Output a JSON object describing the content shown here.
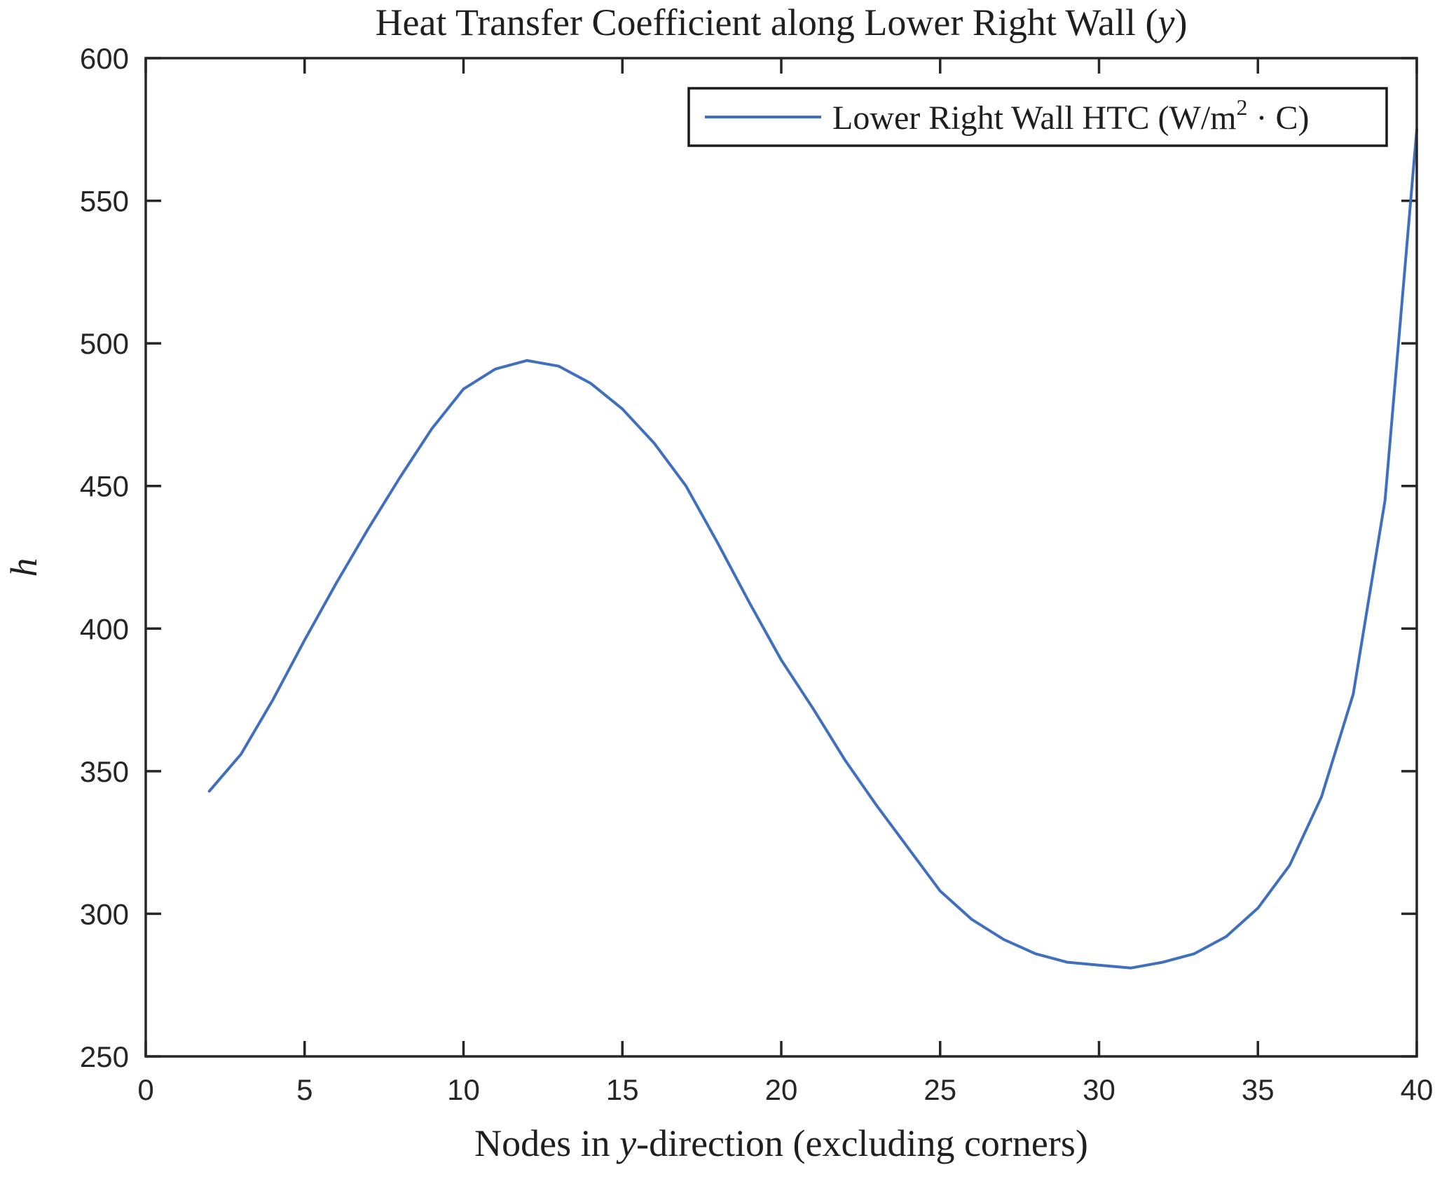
{
  "figure": {
    "title_prefix": "Heat Transfer Coefficient along Lower Right Wall (",
    "title_italic": "y",
    "title_suffix": ")",
    "ylabel": "h",
    "xlabel_prefix": "Nodes in ",
    "xlabel_italic": "y",
    "xlabel_suffix": "-direction (excluding corners)",
    "legend": {
      "label_prefix": "Lower Right Wall HTC (W/m",
      "label_sup": "2",
      "label_suffix": " · C)"
    }
  },
  "chart_data": {
    "type": "line",
    "title": "Heat Transfer Coefficient along Lower Right Wall (y)",
    "xlabel": "Nodes in y-direction (excluding corners)",
    "ylabel": "h",
    "xlim": [
      0,
      40
    ],
    "ylim": [
      250,
      600
    ],
    "x_ticks": [
      0,
      5,
      10,
      15,
      20,
      25,
      30,
      35,
      40
    ],
    "y_ticks": [
      250,
      300,
      350,
      400,
      450,
      500,
      550,
      600
    ],
    "grid": false,
    "legend_position": "upper right",
    "series": [
      {
        "name": "Lower Right Wall HTC (W/m2 · C)",
        "color": "#3f6fbe",
        "x": [
          2,
          3,
          4,
          5,
          6,
          7,
          8,
          9,
          10,
          11,
          12,
          13,
          14,
          15,
          16,
          17,
          18,
          19,
          20,
          21,
          22,
          23,
          24,
          25,
          26,
          27,
          28,
          29,
          30,
          31,
          32,
          33,
          34,
          35,
          36,
          37,
          38,
          39,
          40
        ],
        "values": [
          343,
          356,
          375,
          396,
          416,
          435,
          453,
          470,
          484,
          491,
          494,
          492,
          486,
          477,
          465,
          450,
          430,
          409,
          389,
          372,
          354,
          338,
          323,
          308,
          298,
          291,
          286,
          283,
          282,
          281,
          283,
          286,
          292,
          302,
          317,
          341,
          377,
          445,
          575
        ]
      }
    ]
  },
  "colors": {
    "axis": "#262626",
    "line": "#3f6fbe",
    "background": "#ffffff"
  }
}
